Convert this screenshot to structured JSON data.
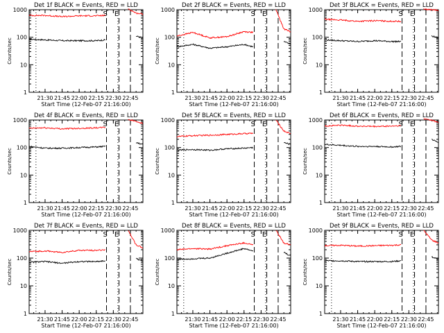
{
  "figure": {
    "panel_title_suffix": "BLACK = Events, RED = LLD",
    "xlabel": "Start Time (12-Feb-07 21:16:00)",
    "ylabel": "Counts/sec",
    "colors": {
      "events": "#000000",
      "lld": "#ff0000",
      "axes": "#000000"
    }
  },
  "chart_data": [
    {
      "type": "line",
      "detector": "Det 1f",
      "title": "Det 1f BLACK = Events, RED = LLD",
      "xlabel": "Start Time (12-Feb-07 21:16:00)",
      "ylabel": "Counts/sec",
      "yscale": "log",
      "ylim": [
        1,
        1000
      ],
      "xlim": [
        "21:16",
        "22:56"
      ],
      "xticks": [
        "21:30",
        "21:45",
        "22:00",
        "22:15",
        "22:30",
        "22:45"
      ],
      "yticks": [
        "1",
        "10",
        "100",
        "1000"
      ],
      "markers": [
        {
          "label": "S",
          "time": "22:24"
        },
        {
          "label": "E",
          "time": "22:34"
        }
      ],
      "dotted_lines": [
        "21:22",
        "22:34"
      ],
      "dashed_lines": [
        "22:24",
        "22:35",
        "22:45"
      ],
      "x": [
        "21:16",
        "21:30",
        "21:45",
        "22:00",
        "22:15",
        "22:23",
        "22:36",
        "22:43",
        "22:50",
        "22:56"
      ],
      "series": [
        {
          "name": "BLACK = Events",
          "values": [
            85,
            80,
            75,
            75,
            75,
            80,
            null,
            null,
            110,
            95
          ]
        },
        {
          "name": "RED = LLD",
          "values": [
            620,
            620,
            560,
            600,
            600,
            620,
            null,
            1100,
            750,
            700
          ]
        }
      ]
    },
    {
      "type": "line",
      "detector": "Det 2f",
      "title": "Det 2f BLACK = Events, RED = LLD",
      "xlabel": "Start Time (12-Feb-07 21:16:00)",
      "ylabel": "Counts/sec",
      "yscale": "log",
      "ylim": [
        1,
        1000
      ],
      "xlim": [
        "21:16",
        "22:56"
      ],
      "xticks": [
        "21:30",
        "21:45",
        "22:00",
        "22:15",
        "22:30",
        "22:45"
      ],
      "yticks": [
        "1",
        "10",
        "100",
        "1000"
      ],
      "markers": [
        {
          "label": "S",
          "time": "22:24"
        },
        {
          "label": "E",
          "time": "22:34"
        }
      ],
      "dotted_lines": [
        "21:22",
        "22:34"
      ],
      "dashed_lines": [
        "22:24",
        "22:35",
        "22:45"
      ],
      "x": [
        "21:16",
        "21:30",
        "21:45",
        "22:00",
        "22:15",
        "22:23",
        "22:36",
        "22:43",
        "22:50",
        "22:56"
      ],
      "series": [
        {
          "name": "BLACK = Events",
          "values": [
            45,
            55,
            40,
            45,
            55,
            45,
            null,
            null,
            70,
            55
          ]
        },
        {
          "name": "RED = LLD",
          "values": [
            110,
            150,
            95,
            105,
            160,
            150,
            null,
            1000,
            200,
            160
          ]
        }
      ]
    },
    {
      "type": "line",
      "detector": "Det 3f",
      "title": "Det 3f BLACK = Events, RED = LLD",
      "xlabel": "Start Time (12-Feb-07 21:16:00)",
      "ylabel": "Counts/sec",
      "yscale": "log",
      "ylim": [
        1,
        1000
      ],
      "xlim": [
        "21:16",
        "22:56"
      ],
      "xticks": [
        "21:30",
        "21:45",
        "22:00",
        "22:15",
        "22:30",
        "22:45"
      ],
      "yticks": [
        "1",
        "10",
        "100",
        "1000"
      ],
      "markers": [
        {
          "label": "S",
          "time": "22:24"
        },
        {
          "label": "E",
          "time": "22:34"
        }
      ],
      "dotted_lines": [
        "21:22",
        "22:34"
      ],
      "dashed_lines": [
        "22:24",
        "22:35",
        "22:45"
      ],
      "x": [
        "21:16",
        "21:30",
        "21:45",
        "22:00",
        "22:15",
        "22:23",
        "22:36",
        "22:43",
        "22:50",
        "22:56"
      ],
      "series": [
        {
          "name": "BLACK = Events",
          "values": [
            80,
            75,
            70,
            75,
            70,
            70,
            null,
            null,
            110,
            95
          ]
        },
        {
          "name": "RED = LLD",
          "values": [
            450,
            420,
            380,
            400,
            380,
            380,
            null,
            1050,
            1000,
            950
          ]
        }
      ]
    },
    {
      "type": "line",
      "detector": "Det 4f",
      "title": "Det 4f BLACK = Events, RED = LLD",
      "xlabel": "Start Time (12-Feb-07 21:16:00)",
      "ylabel": "Counts/sec",
      "yscale": "log",
      "ylim": [
        1,
        1000
      ],
      "xlim": [
        "21:16",
        "22:56"
      ],
      "xticks": [
        "21:30",
        "21:45",
        "22:00",
        "22:15",
        "22:30",
        "22:45"
      ],
      "yticks": [
        "1",
        "10",
        "100",
        "1000"
      ],
      "markers": [
        {
          "label": "S",
          "time": "22:24"
        },
        {
          "label": "E",
          "time": "22:34"
        }
      ],
      "dotted_lines": [
        "21:22",
        "22:34"
      ],
      "dashed_lines": [
        "22:24",
        "22:35",
        "22:45"
      ],
      "x": [
        "21:16",
        "21:30",
        "21:45",
        "22:00",
        "22:15",
        "22:23",
        "22:36",
        "22:43",
        "22:50",
        "22:56"
      ],
      "series": [
        {
          "name": "BLACK = Events",
          "values": [
            110,
            95,
            95,
            100,
            105,
            110,
            null,
            null,
            150,
            130
          ]
        },
        {
          "name": "RED = LLD",
          "values": [
            500,
            520,
            480,
            500,
            520,
            540,
            null,
            1050,
            900,
            750
          ]
        }
      ]
    },
    {
      "type": "line",
      "detector": "Det 5f",
      "title": "Det 5f BLACK = Events, RED = LLD",
      "xlabel": "Start Time (12-Feb-07 21:16:00)",
      "ylabel": "Counts/sec",
      "yscale": "log",
      "ylim": [
        1,
        1000
      ],
      "xlim": [
        "21:16",
        "22:56"
      ],
      "xticks": [
        "21:30",
        "21:45",
        "22:00",
        "22:15",
        "22:30",
        "22:45"
      ],
      "yticks": [
        "1",
        "10",
        "100",
        "1000"
      ],
      "markers": [
        {
          "label": "S",
          "time": "22:24"
        },
        {
          "label": "E",
          "time": "22:34"
        }
      ],
      "dotted_lines": [
        "21:22",
        "22:34"
      ],
      "dashed_lines": [
        "22:24",
        "22:35",
        "22:45"
      ],
      "x": [
        "21:16",
        "21:30",
        "21:45",
        "22:00",
        "22:15",
        "22:23",
        "22:36",
        "22:43",
        "22:50",
        "22:56"
      ],
      "series": [
        {
          "name": "BLACK = Events",
          "values": [
            80,
            85,
            80,
            90,
            95,
            100,
            null,
            null,
            150,
            130
          ]
        },
        {
          "name": "RED = LLD",
          "values": [
            250,
            270,
            280,
            300,
            320,
            330,
            null,
            1000,
            400,
            320
          ]
        }
      ]
    },
    {
      "type": "line",
      "detector": "Det 6f",
      "title": "Det 6f BLACK = Events, RED = LLD",
      "xlabel": "Start Time (12-Feb-07 21:16:00)",
      "ylabel": "Counts/sec",
      "yscale": "log",
      "ylim": [
        1,
        1000
      ],
      "xlim": [
        "21:16",
        "22:56"
      ],
      "xticks": [
        "21:30",
        "21:45",
        "22:00",
        "22:15",
        "22:30",
        "22:45"
      ],
      "yticks": [
        "1",
        "10",
        "100",
        "1000"
      ],
      "markers": [
        {
          "label": "S",
          "time": "22:24"
        },
        {
          "label": "E",
          "time": "22:34"
        }
      ],
      "dotted_lines": [
        "21:22",
        "22:34"
      ],
      "dashed_lines": [
        "22:24",
        "22:35",
        "22:45"
      ],
      "x": [
        "21:16",
        "21:30",
        "21:45",
        "22:00",
        "22:15",
        "22:23",
        "22:36",
        "22:43",
        "22:50",
        "22:56"
      ],
      "series": [
        {
          "name": "BLACK = Events",
          "values": [
            130,
            120,
            110,
            110,
            105,
            110,
            null,
            null,
            200,
            150
          ]
        },
        {
          "name": "RED = LLD",
          "values": [
            600,
            650,
            600,
            580,
            600,
            620,
            null,
            1100,
            1000,
            800
          ]
        }
      ]
    },
    {
      "type": "line",
      "detector": "Det 7f",
      "title": "Det 7f BLACK = Events, RED = LLD",
      "xlabel": "Start Time (12-Feb-07 21:16:00)",
      "ylabel": "Counts/sec",
      "yscale": "log",
      "ylim": [
        1,
        1000
      ],
      "xlim": [
        "21:16",
        "22:56"
      ],
      "xticks": [
        "21:30",
        "21:45",
        "22:00",
        "22:15",
        "22:30",
        "22:45"
      ],
      "yticks": [
        "1",
        "10",
        "100",
        "1000"
      ],
      "markers": [
        {
          "label": "S",
          "time": "22:24"
        },
        {
          "label": "E",
          "time": "22:34"
        }
      ],
      "dotted_lines": [
        "21:22",
        "22:34"
      ],
      "dashed_lines": [
        "22:24",
        "22:35",
        "22:45"
      ],
      "x": [
        "21:16",
        "21:30",
        "21:45",
        "22:00",
        "22:15",
        "22:23",
        "22:36",
        "22:43",
        "22:50",
        "22:56"
      ],
      "series": [
        {
          "name": "BLACK = Events",
          "values": [
            70,
            75,
            65,
            75,
            75,
            80,
            null,
            null,
            95,
            80
          ]
        },
        {
          "name": "RED = LLD",
          "values": [
            170,
            180,
            160,
            190,
            190,
            200,
            null,
            1000,
            300,
            230
          ]
        }
      ]
    },
    {
      "type": "line",
      "detector": "Det 8f",
      "title": "Det 8f BLACK = Events, RED = LLD",
      "xlabel": "Start Time (12-Feb-07 21:16:00)",
      "ylabel": "Counts/sec",
      "yscale": "log",
      "ylim": [
        1,
        1000
      ],
      "xlim": [
        "21:16",
        "22:56"
      ],
      "xticks": [
        "21:30",
        "21:45",
        "22:00",
        "22:15",
        "22:30",
        "22:45"
      ],
      "yticks": [
        "1",
        "10",
        "100",
        "1000"
      ],
      "markers": [
        {
          "label": "S",
          "time": "22:24"
        },
        {
          "label": "E",
          "time": "22:34"
        }
      ],
      "dotted_lines": [
        "21:22",
        "22:34"
      ],
      "dashed_lines": [
        "22:24",
        "22:35",
        "22:45"
      ],
      "x": [
        "21:16",
        "21:30",
        "21:45",
        "22:00",
        "22:15",
        "22:23",
        "22:36",
        "22:43",
        "22:50",
        "22:56"
      ],
      "series": [
        {
          "name": "BLACK = Events",
          "values": [
            90,
            95,
            100,
            150,
            220,
            180,
            null,
            null,
            160,
            120
          ]
        },
        {
          "name": "RED = LLD",
          "values": [
            200,
            220,
            210,
            280,
            350,
            300,
            null,
            1000,
            350,
            300
          ]
        }
      ]
    },
    {
      "type": "line",
      "detector": "Det 9f",
      "title": "Det 9f BLACK = Events, RED = LLD",
      "xlabel": "Start Time (12-Feb-07 21:16:00)",
      "ylabel": "Counts/sec",
      "yscale": "log",
      "ylim": [
        1,
        1000
      ],
      "xlim": [
        "21:16",
        "22:56"
      ],
      "xticks": [
        "21:30",
        "21:45",
        "22:00",
        "22:15",
        "22:30",
        "22:45"
      ],
      "yticks": [
        "1",
        "10",
        "100",
        "1000"
      ],
      "markers": [
        {
          "label": "S",
          "time": "22:24"
        },
        {
          "label": "E",
          "time": "22:34"
        }
      ],
      "dotted_lines": [
        "21:22",
        "22:34"
      ],
      "dashed_lines": [
        "22:24",
        "22:35",
        "22:45"
      ],
      "x": [
        "21:16",
        "21:30",
        "21:45",
        "22:00",
        "22:15",
        "22:23",
        "22:36",
        "22:43",
        "22:50",
        "22:56"
      ],
      "series": [
        {
          "name": "BLACK = Events",
          "values": [
            80,
            80,
            75,
            75,
            75,
            80,
            null,
            null,
            110,
            90
          ]
        },
        {
          "name": "RED = LLD",
          "values": [
            280,
            290,
            270,
            280,
            290,
            300,
            null,
            1000,
            450,
            350
          ]
        }
      ]
    }
  ]
}
